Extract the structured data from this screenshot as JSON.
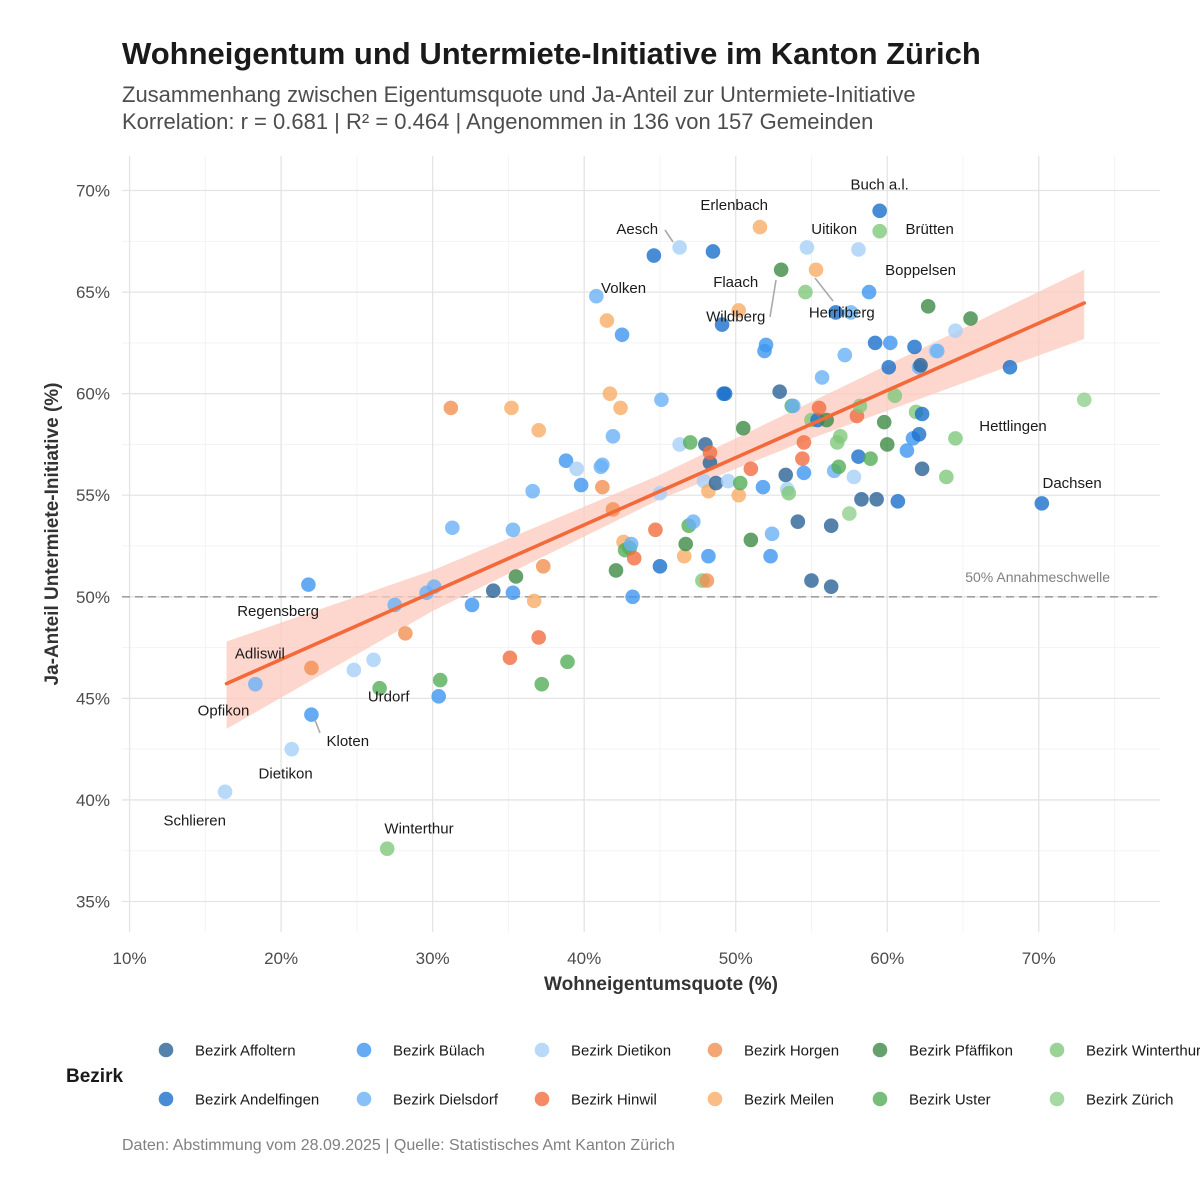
{
  "title": "Wohneigentum und Untermiete-Initiative im Kanton Zürich",
  "subtitle_line1": "Zusammenhang zwischen Eigentumsquote und Ja-Anteil zur Untermiete-Initiative",
  "subtitle_line2": "Korrelation: r = 0.681 | R² = 0.464 | Angenommen in 136 von 157 Gemeinden",
  "caption": "Daten: Abstimmung vom 28.09.2025 | Quelle: Statistisches Amt Kanton Zürich",
  "chart_data": {
    "type": "scatter",
    "xlabel": "Wohneigentumsquote (%)",
    "ylabel": "Ja-Anteil Untermiete-Initiative (%)",
    "xlim": [
      9.5,
      78
    ],
    "ylim": [
      33.5,
      71.7
    ],
    "x_ticks": [
      10,
      20,
      30,
      40,
      50,
      60,
      70
    ],
    "y_ticks": [
      35,
      40,
      45,
      50,
      55,
      60,
      65,
      70
    ],
    "tick_suffix": "%",
    "grid": true,
    "threshold": {
      "y": 50,
      "label": "50% Annahmeschwelle"
    },
    "trend": {
      "slope": 0.331,
      "intercept": 40.3,
      "x_range": [
        16.4,
        73
      ],
      "ci": [
        [
          16.4,
          43.5,
          47.8
        ],
        [
          30,
          49.3,
          51.3
        ],
        [
          45,
          54.8,
          56.0
        ],
        [
          55,
          57.8,
          59.6
        ],
        [
          73,
          62.7,
          66.1
        ]
      ],
      "color": "#f4693a",
      "ci_color": "#fcc9bc"
    },
    "legend": {
      "title": "Bezirk",
      "position": "bottom",
      "entries": [
        {
          "name": "Bezirk Affoltern",
          "color": "#2a6396"
        },
        {
          "name": "Bezirk Andelfingen",
          "color": "#1a6fcc"
        },
        {
          "name": "Bezirk Bülach",
          "color": "#3d96f0"
        },
        {
          "name": "Bezirk Dielsdorf",
          "color": "#6ab0f6"
        },
        {
          "name": "Bezirk Dietikon",
          "color": "#a8d0f8"
        },
        {
          "name": "Bezirk Hinwil",
          "color": "#f16d40"
        },
        {
          "name": "Bezirk Horgen",
          "color": "#f39052"
        },
        {
          "name": "Bezirk Meilen",
          "color": "#f8ad66"
        },
        {
          "name": "Bezirk Pfäffikon",
          "color": "#3f8a45"
        },
        {
          "name": "Bezirk Uster",
          "color": "#54ae58"
        },
        {
          "name": "Bezirk Winterthur",
          "color": "#7fc87c"
        },
        {
          "name": "Bezirk Zürich",
          "color": "#90d08c"
        }
      ]
    },
    "labels": [
      {
        "text": "Buch a.l.",
        "x": 59.5,
        "y": 70.3
      },
      {
        "text": "Erlenbach",
        "x": 49.9,
        "y": 69.3
      },
      {
        "text": "Aesch",
        "x": 43.5,
        "y": 68.1
      },
      {
        "text": "Uitikon",
        "x": 56.5,
        "y": 68.1
      },
      {
        "text": "Brütten",
        "x": 62.8,
        "y": 68.1
      },
      {
        "text": "Boppelsen",
        "x": 62.2,
        "y": 66.1
      },
      {
        "text": "Flaach",
        "x": 50,
        "y": 65.5
      },
      {
        "text": "Volken",
        "x": 42.6,
        "y": 65.2
      },
      {
        "text": "Wildberg",
        "x": 50,
        "y": 63.8
      },
      {
        "text": "Herrliberg",
        "x": 57,
        "y": 64.0
      },
      {
        "text": "Hettlingen",
        "x": 68.3,
        "y": 58.4
      },
      {
        "text": "Dachsen",
        "x": 72.2,
        "y": 55.6
      },
      {
        "text": "Regensberg",
        "x": 19.8,
        "y": 49.3
      },
      {
        "text": "Adliswil",
        "x": 18.6,
        "y": 47.2
      },
      {
        "text": "Urdorf",
        "x": 27.1,
        "y": 45.1
      },
      {
        "text": "Opfikon",
        "x": 16.2,
        "y": 44.4
      },
      {
        "text": "Kloten",
        "x": 24.4,
        "y": 42.9
      },
      {
        "text": "Dietikon",
        "x": 20.3,
        "y": 41.3
      },
      {
        "text": "Schlieren",
        "x": 14.3,
        "y": 39.0
      },
      {
        "text": "Winterthur",
        "x": 29.1,
        "y": 38.6
      }
    ],
    "points": [
      [
        16.3,
        40.4,
        4
      ],
      [
        20.7,
        42.5,
        4
      ],
      [
        18.3,
        45.7,
        3
      ],
      [
        22.0,
        46.5,
        6
      ],
      [
        22.0,
        44.2,
        2
      ],
      [
        21.8,
        50.6,
        2
      ],
      [
        24.8,
        46.4,
        4
      ],
      [
        26.1,
        46.9,
        4
      ],
      [
        26.5,
        45.5,
        9
      ],
      [
        27.0,
        37.6,
        10
      ],
      [
        27.5,
        49.6,
        3
      ],
      [
        28.2,
        48.2,
        6
      ],
      [
        29.6,
        50.2,
        3
      ],
      [
        30.1,
        50.5,
        3
      ],
      [
        30.4,
        45.1,
        2
      ],
      [
        30.5,
        45.9,
        9
      ],
      [
        31.2,
        59.3,
        6
      ],
      [
        31.3,
        53.4,
        3
      ],
      [
        32.6,
        49.6,
        2
      ],
      [
        34.0,
        50.3,
        0
      ],
      [
        35.1,
        47.0,
        5
      ],
      [
        35.2,
        59.3,
        7
      ],
      [
        35.3,
        53.3,
        3
      ],
      [
        35.3,
        50.2,
        2
      ],
      [
        35.5,
        51.0,
        8
      ],
      [
        36.6,
        55.2,
        3
      ],
      [
        36.7,
        49.8,
        7
      ],
      [
        37.0,
        48.0,
        5
      ],
      [
        37.0,
        58.2,
        7
      ],
      [
        37.2,
        45.7,
        9
      ],
      [
        37.3,
        51.5,
        6
      ],
      [
        38.8,
        56.7,
        2
      ],
      [
        38.9,
        46.8,
        9
      ],
      [
        39.5,
        56.3,
        4
      ],
      [
        39.8,
        55.5,
        2
      ],
      [
        40.8,
        64.8,
        3
      ],
      [
        41.1,
        56.4,
        3
      ],
      [
        41.2,
        56.5,
        3
      ],
      [
        41.2,
        55.4,
        6
      ],
      [
        41.5,
        63.6,
        7
      ],
      [
        41.7,
        60.0,
        7
      ],
      [
        41.9,
        57.9,
        3
      ],
      [
        41.9,
        54.3,
        6
      ],
      [
        42.1,
        51.3,
        8
      ],
      [
        42.4,
        59.3,
        7
      ],
      [
        42.5,
        62.9,
        2
      ],
      [
        42.6,
        52.7,
        7
      ],
      [
        42.7,
        52.3,
        9
      ],
      [
        43.0,
        52.4,
        9
      ],
      [
        43.1,
        52.6,
        3
      ],
      [
        43.2,
        50.0,
        2
      ],
      [
        43.3,
        51.9,
        5
      ],
      [
        44.6,
        66.8,
        1
      ],
      [
        44.7,
        53.3,
        5
      ],
      [
        45.0,
        55.1,
        4
      ],
      [
        45.0,
        51.5,
        1
      ],
      [
        45.1,
        59.7,
        3
      ],
      [
        46.3,
        57.5,
        4
      ],
      [
        46.3,
        67.2,
        4
      ],
      [
        46.6,
        52.0,
        7
      ],
      [
        46.7,
        52.6,
        8
      ],
      [
        46.9,
        53.5,
        9
      ],
      [
        47.0,
        57.6,
        9
      ],
      [
        47.2,
        53.7,
        3
      ],
      [
        47.8,
        50.8,
        10
      ],
      [
        47.9,
        55.7,
        4
      ],
      [
        48.0,
        57.5,
        0
      ],
      [
        48.1,
        50.8,
        6
      ],
      [
        48.2,
        55.2,
        7
      ],
      [
        48.2,
        52.0,
        2
      ],
      [
        48.3,
        56.6,
        0
      ],
      [
        48.3,
        57.1,
        5
      ],
      [
        48.5,
        67.0,
        1
      ],
      [
        48.7,
        55.6,
        0
      ],
      [
        49.1,
        63.4,
        1
      ],
      [
        49.2,
        60.0,
        1
      ],
      [
        49.3,
        60.0,
        1
      ],
      [
        49.5,
        55.7,
        4
      ],
      [
        50.2,
        64.1,
        7
      ],
      [
        50.2,
        55.0,
        7
      ],
      [
        50.3,
        55.6,
        9
      ],
      [
        50.5,
        58.3,
        8
      ],
      [
        51.0,
        52.8,
        8
      ],
      [
        51.0,
        56.3,
        5
      ],
      [
        51.6,
        68.2,
        7
      ],
      [
        51.8,
        55.4,
        2
      ],
      [
        51.9,
        62.1,
        2
      ],
      [
        52.0,
        62.4,
        2
      ],
      [
        52.3,
        52.0,
        2
      ],
      [
        52.4,
        53.1,
        3
      ],
      [
        52.9,
        60.1,
        0
      ],
      [
        53.0,
        66.1,
        8
      ],
      [
        53.3,
        56.0,
        0
      ],
      [
        53.4,
        55.3,
        4
      ],
      [
        53.5,
        55.1,
        10
      ],
      [
        53.7,
        59.4,
        9
      ],
      [
        53.8,
        59.4,
        3
      ],
      [
        54.1,
        53.7,
        0
      ],
      [
        54.4,
        56.8,
        5
      ],
      [
        54.5,
        57.6,
        5
      ],
      [
        54.5,
        56.1,
        2
      ],
      [
        54.6,
        65.0,
        10
      ],
      [
        54.7,
        67.2,
        4
      ],
      [
        55.0,
        50.8,
        0
      ],
      [
        55.0,
        58.7,
        10
      ],
      [
        55.3,
        66.1,
        7
      ],
      [
        55.4,
        58.7,
        1
      ],
      [
        55.5,
        59.3,
        5
      ],
      [
        55.7,
        60.8,
        3
      ],
      [
        56.0,
        58.7,
        8
      ],
      [
        56.3,
        53.5,
        0
      ],
      [
        56.3,
        50.5,
        0
      ],
      [
        56.5,
        56.2,
        3
      ],
      [
        56.6,
        64.0,
        1
      ],
      [
        56.7,
        57.6,
        10
      ],
      [
        56.8,
        56.4,
        9
      ],
      [
        56.9,
        57.9,
        10
      ],
      [
        57.2,
        61.9,
        3
      ],
      [
        57.5,
        54.1,
        11
      ],
      [
        57.6,
        64.0,
        3
      ],
      [
        57.8,
        55.9,
        4
      ],
      [
        58.0,
        58.9,
        5
      ],
      [
        58.1,
        56.9,
        1
      ],
      [
        58.1,
        67.1,
        4
      ],
      [
        58.2,
        59.4,
        10
      ],
      [
        58.3,
        54.8,
        0
      ],
      [
        58.8,
        65.0,
        2
      ],
      [
        58.9,
        56.8,
        9
      ],
      [
        59.2,
        62.5,
        1
      ],
      [
        59.3,
        54.8,
        0
      ],
      [
        59.5,
        69.0,
        1
      ],
      [
        59.5,
        68.0,
        10
      ],
      [
        59.8,
        58.6,
        8
      ],
      [
        60.0,
        57.5,
        8
      ],
      [
        60.1,
        61.3,
        1
      ],
      [
        60.2,
        62.5,
        2
      ],
      [
        60.5,
        59.9,
        10
      ],
      [
        60.7,
        54.7,
        1
      ],
      [
        61.3,
        57.2,
        2
      ],
      [
        61.7,
        57.8,
        2
      ],
      [
        61.8,
        62.3,
        1
      ],
      [
        61.9,
        59.1,
        10
      ],
      [
        62.1,
        58.0,
        1
      ],
      [
        62.1,
        61.3,
        3
      ],
      [
        62.2,
        61.4,
        0
      ],
      [
        62.3,
        59.0,
        1
      ],
      [
        62.3,
        56.3,
        0
      ],
      [
        62.7,
        64.3,
        8
      ],
      [
        63.2,
        62.1,
        4
      ],
      [
        63.3,
        62.1,
        3
      ],
      [
        63.9,
        55.9,
        10
      ],
      [
        64.5,
        63.1,
        4
      ],
      [
        64.5,
        57.8,
        10
      ],
      [
        65.5,
        63.7,
        8
      ],
      [
        68.1,
        61.3,
        1
      ],
      [
        70.2,
        54.6,
        1
      ],
      [
        73.0,
        59.7,
        11
      ]
    ]
  }
}
